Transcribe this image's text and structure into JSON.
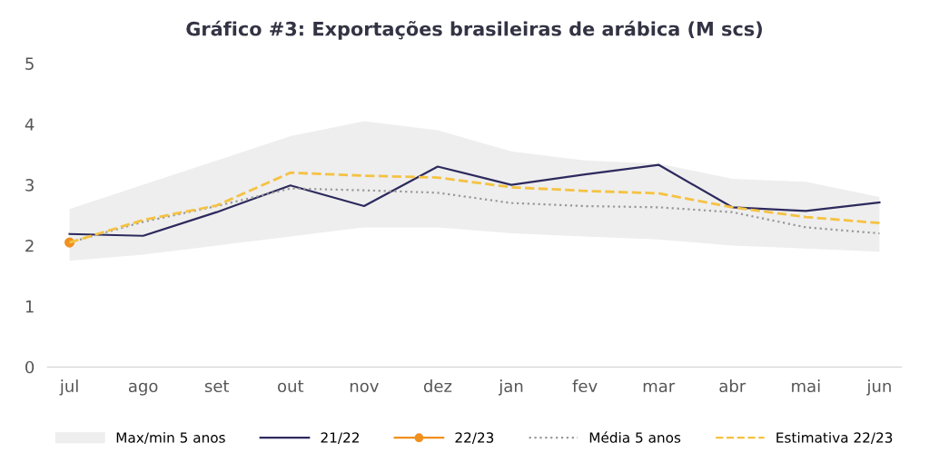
{
  "chart_data": {
    "type": "line",
    "title": "Gráfico #3: Exportações brasileiras de arábica (M scs)",
    "categories": [
      "jul",
      "ago",
      "set",
      "out",
      "nov",
      "dez",
      "jan",
      "fev",
      "mar",
      "abr",
      "mai",
      "jun"
    ],
    "series": [
      {
        "name": "Max/min 5 anos",
        "type": "area",
        "color": "#eeeeee",
        "values": [
          null,
          null,
          null,
          null,
          null,
          null,
          null,
          null,
          null,
          null,
          null,
          null
        ],
        "upper": [
          2.6,
          3.0,
          3.4,
          3.8,
          4.05,
          3.9,
          3.55,
          3.4,
          3.35,
          3.1,
          3.05,
          2.8
        ],
        "lower": [
          1.75,
          1.85,
          2.0,
          2.15,
          2.3,
          2.3,
          2.2,
          2.15,
          2.1,
          2.0,
          1.95,
          1.9
        ]
      },
      {
        "name": "21/22",
        "color": "#2d2a5e",
        "values": [
          2.19,
          2.16,
          2.55,
          2.99,
          2.65,
          3.3,
          3.0,
          3.17,
          3.33,
          2.63,
          2.57,
          2.71
        ]
      },
      {
        "name": "22/23",
        "color": "#f0901e",
        "marker": "circle",
        "values": [
          2.05,
          null,
          null,
          null,
          null,
          null,
          null,
          null,
          null,
          null,
          null,
          null
        ]
      },
      {
        "name": "Média 5 anos",
        "color": "#999999",
        "line_style": "dotted",
        "values": [
          2.05,
          2.39,
          2.65,
          2.94,
          2.91,
          2.87,
          2.7,
          2.65,
          2.63,
          2.55,
          2.3,
          2.2
        ]
      },
      {
        "name": "Estimativa 22/23",
        "color": "#f5c242",
        "line_style": "dashed",
        "values": [
          2.05,
          2.42,
          2.66,
          3.2,
          3.15,
          3.12,
          2.96,
          2.9,
          2.86,
          2.63,
          2.47,
          2.37
        ]
      }
    ],
    "ylim": [
      0,
      5
    ],
    "yticks": [
      0,
      1,
      2,
      3,
      4,
      5
    ],
    "grid": false,
    "legend": "bottom"
  }
}
